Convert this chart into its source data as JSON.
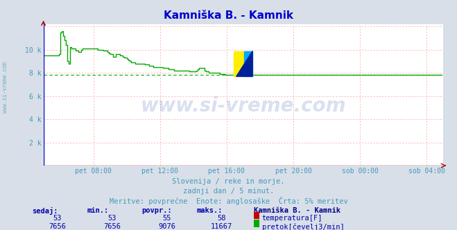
{
  "title": "Kamniška B. - Kamnik",
  "title_color": "#0000cc",
  "bg_color": "#d8dfe8",
  "plot_bg_color": "#ffffff",
  "grid_color": "#ff9999",
  "x_labels": [
    "pet 08:00",
    "pet 12:00",
    "pet 16:00",
    "pet 20:00",
    "sob 00:00",
    "sob 04:00"
  ],
  "y_tick_vals": [
    0,
    2000,
    4000,
    6000,
    8000,
    10000,
    12000
  ],
  "y_tick_labels": [
    "",
    "2 k",
    "4 k",
    "6 k",
    "8 k",
    "10 k",
    ""
  ],
  "ylim": [
    0,
    12200
  ],
  "xlim_hours": [
    0,
    24
  ],
  "watermark_text": "www.si-vreme.com",
  "footer_line1": "Slovenija / reke in morje.",
  "footer_line2": "zadnji dan / 5 minut.",
  "footer_line3": "Meritve: povprečne  Enote: anglosaške  Črta: 5% meritev",
  "footer_color": "#4499bb",
  "table_header_color": "#0000aa",
  "table_value_color": "#0000aa",
  "station_label_color": "#000088",
  "temp_color": "#cc0000",
  "flow_color": "#00aa00",
  "avg_flow": 7800,
  "axis_color": "#aa0000",
  "left_label_color": "#4499bb",
  "watermark_color": "#3355aa",
  "watermark_alpha": 0.18,
  "logo_yellow": "#ffee00",
  "logo_blue": "#00aaff",
  "logo_dark": "#002299",
  "flow_data": [
    9500,
    9500,
    9500,
    9500,
    9500,
    9500,
    9500,
    9500,
    9500,
    9500,
    9500,
    9600,
    11500,
    11600,
    11200,
    10800,
    10400,
    9000,
    8800,
    10200,
    10100,
    10100,
    10100,
    9900,
    9900,
    9800,
    9800,
    10000,
    10100,
    10100,
    10100,
    10100,
    10100,
    10100,
    10100,
    10100,
    10100,
    10100,
    10100,
    10000,
    10000,
    10000,
    10000,
    9900,
    9900,
    9900,
    9800,
    9700,
    9600,
    9600,
    9400,
    9400,
    9600,
    9600,
    9600,
    9500,
    9500,
    9400,
    9300,
    9300,
    9200,
    9100,
    9000,
    8900,
    8900,
    8900,
    8800,
    8800,
    8800,
    8800,
    8800,
    8800,
    8800,
    8700,
    8700,
    8700,
    8600,
    8600,
    8600,
    8500,
    8500,
    8500,
    8500,
    8500,
    8500,
    8500,
    8400,
    8400,
    8400,
    8400,
    8300,
    8300,
    8300,
    8300,
    8200,
    8200,
    8200,
    8200,
    8200,
    8200,
    8200,
    8200,
    8200,
    8200,
    8200,
    8100,
    8100,
    8100,
    8100,
    8100,
    8200,
    8300,
    8400,
    8400,
    8400,
    8400,
    8200,
    8100,
    8100,
    8000,
    8000,
    8000,
    8000,
    8000,
    8000,
    8000,
    8000,
    7900,
    7900,
    7900,
    7900,
    7800,
    7800,
    7800,
    7800,
    7800,
    7800,
    7800,
    7800,
    7800,
    7800,
    7800,
    7800,
    7800,
    7800,
    7800,
    7800,
    7800,
    7800,
    7800,
    7800,
    7800,
    7800,
    7800,
    7800,
    7800,
    7800,
    7800,
    7800,
    7800,
    7800,
    7800,
    7800,
    7800,
    7800,
    7800,
    7800,
    7800,
    7800,
    7800,
    7800,
    7800,
    7800,
    7800,
    7800,
    7800,
    7800,
    7800,
    7800,
    7800,
    7800,
    7800,
    7800,
    7800,
    7800,
    7800,
    7800,
    7800,
    7800,
    7800,
    7800,
    7800,
    7800,
    7800,
    7800,
    7800,
    7800,
    7800,
    7800,
    7800,
    7800,
    7800,
    7800,
    7800,
    7800,
    7800,
    7800,
    7800,
    7800,
    7800,
    7800,
    7800,
    7800,
    7800,
    7800,
    7800,
    7800,
    7800,
    7800,
    7800,
    7800,
    7800,
    7800,
    7800,
    7800,
    7800,
    7800,
    7800,
    7800,
    7800,
    7800,
    7800,
    7800,
    7800,
    7800,
    7800,
    7800,
    7800,
    7800,
    7800,
    7800,
    7800,
    7800,
    7800,
    7800,
    7800,
    7800,
    7800,
    7800,
    7800,
    7800,
    7800,
    7800,
    7800,
    7800,
    7800,
    7800,
    7800,
    7800,
    7800,
    7800,
    7800,
    7800,
    7800,
    7800,
    7800,
    7800,
    7800,
    7800,
    7800,
    7800,
    7800,
    7800,
    7800,
    7800,
    7800,
    7800,
    7800,
    7800,
    7800,
    7800,
    7800,
    7800,
    7800,
    7800,
    7800,
    7800,
    7800
  ]
}
